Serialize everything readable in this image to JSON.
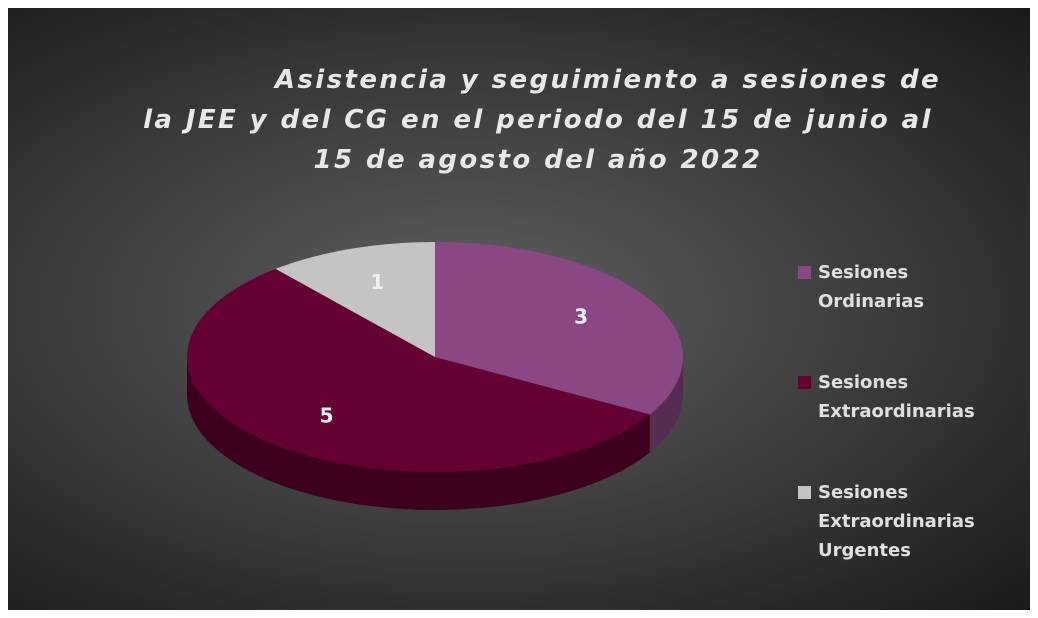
{
  "chart_data": {
    "type": "pie3d",
    "title": "Asistencia y seguimiento a sesiones de la JEE y del CG en el periodo del 15 de junio al 15 de agosto del año 2022",
    "series": [
      {
        "name": "Sesiones Ordinarias",
        "color": "#8b4784",
        "values": [
          3
        ]
      },
      {
        "name": "Sesiones Extraordinarias",
        "color": "#640032",
        "values": [
          5
        ]
      },
      {
        "name": "Sesiones Extraordinarias Urgentes",
        "color": "#c4c4c4",
        "values": [
          1
        ]
      }
    ],
    "legend": "right"
  }
}
